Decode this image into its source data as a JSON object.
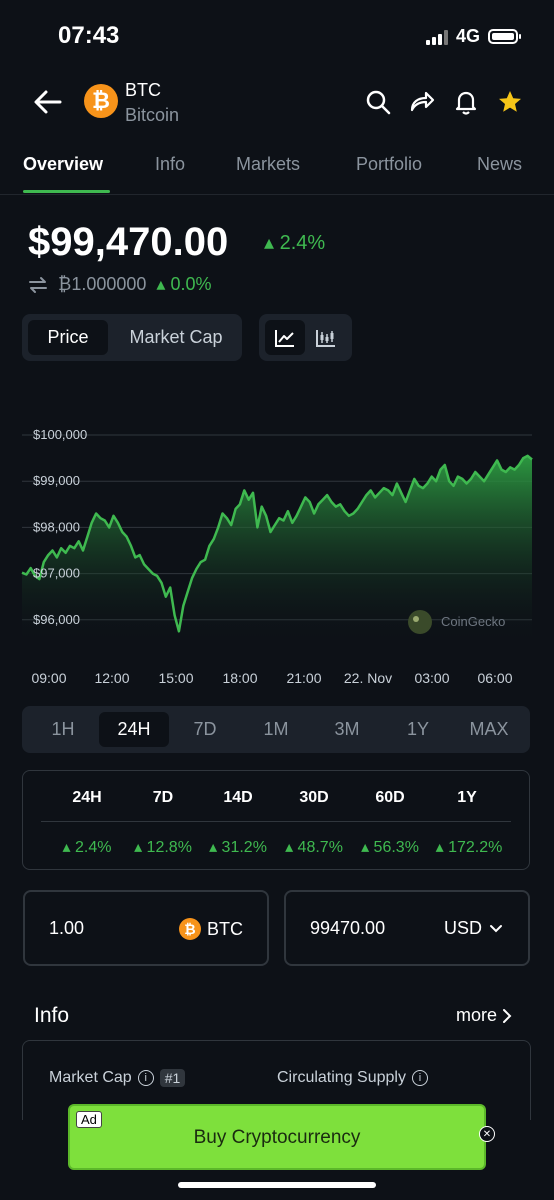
{
  "status": {
    "time": "07:43",
    "network": "4G"
  },
  "header": {
    "symbol": "BTC",
    "name": "Bitcoin",
    "logo_glyph": "₿",
    "logo_color": "#f7931a",
    "icons": [
      "back-arrow-icon",
      "search-icon",
      "share-icon",
      "bell-icon",
      "star-icon"
    ]
  },
  "tabs": [
    "Overview",
    "Info",
    "Markets",
    "Portfolio",
    "News"
  ],
  "price": {
    "value": "$99,470.00",
    "change": "2.4%",
    "btc_value": "₿1.000000",
    "btc_change": "0.0%"
  },
  "chart_toggle": {
    "price": "Price",
    "market_cap": "Market Cap"
  },
  "chart_data": {
    "type": "area",
    "y_ticks": [
      "$100,000",
      "$99,000",
      "$98,000",
      "$97,000",
      "$96,000"
    ],
    "x_ticks": [
      "09:00",
      "12:00",
      "15:00",
      "18:00",
      "21:00",
      "22. Nov",
      "03:00",
      "06:00"
    ],
    "ylim": [
      95700,
      100400
    ],
    "watermark": "CoinGecko",
    "line_color": "#3fb950",
    "values": [
      97020,
      96980,
      97120,
      96950,
      96880,
      97250,
      97400,
      97500,
      97350,
      97550,
      97450,
      97600,
      97550,
      97700,
      97500,
      97800,
      98100,
      98300,
      98200,
      98150,
      98000,
      98250,
      98100,
      97900,
      97800,
      97600,
      97350,
      97400,
      97200,
      97100,
      97000,
      96950,
      96800,
      96500,
      96700,
      96100,
      95750,
      96300,
      96600,
      96900,
      97100,
      97250,
      97300,
      97600,
      97750,
      98000,
      98300,
      98200,
      98050,
      98400,
      98500,
      98800,
      98600,
      98750,
      98000,
      98450,
      98250,
      97900,
      98050,
      98200,
      98150,
      98350,
      98100,
      98250,
      98450,
      98650,
      98550,
      98300,
      98500,
      98600,
      98700,
      98550,
      98450,
      98500,
      98350,
      98250,
      98300,
      98400,
      98550,
      98700,
      98800,
      98650,
      98750,
      98850,
      98800,
      98700,
      98950,
      98750,
      98550,
      98800,
      99050,
      98900,
      98850,
      98950,
      99100,
      99000,
      99250,
      99350,
      99000,
      98900,
      99100,
      99050,
      98950,
      99050,
      99200,
      99100,
      99000,
      99150,
      99300,
      99450,
      99250,
      99200,
      99300,
      99250,
      99350,
      99500,
      99550,
      99470
    ]
  },
  "ranges": [
    "1H",
    "24H",
    "7D",
    "1M",
    "3M",
    "1Y",
    "MAX"
  ],
  "active_range": "24H",
  "performance": {
    "headers": [
      "24H",
      "7D",
      "14D",
      "30D",
      "60D",
      "1Y"
    ],
    "values": [
      "2.4%",
      "12.8%",
      "31.2%",
      "48.7%",
      "56.3%",
      "172.2%"
    ]
  },
  "converter": {
    "amount": "1.00",
    "coin": "BTC",
    "fiat_amount": "99470.00",
    "fiat": "USD"
  },
  "info": {
    "title": "Info",
    "more": "more",
    "market_cap_label": "Market Cap",
    "rank": "#1",
    "circulating_label": "Circulating Supply"
  },
  "ad": {
    "tag": "Ad",
    "label": "Buy Cryptocurrency",
    "color": "#7ee03c"
  }
}
